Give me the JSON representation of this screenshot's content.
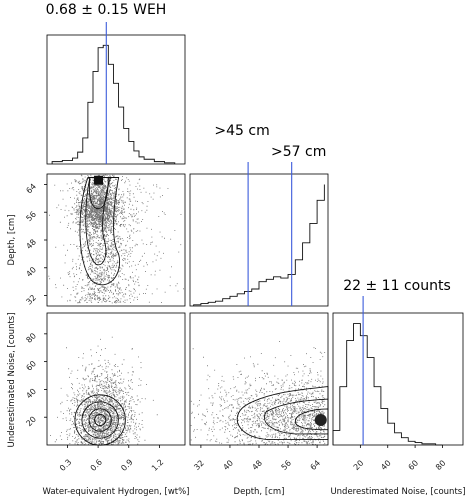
{
  "chart_data": {
    "type": "corner",
    "parameters": [
      {
        "id": "weh",
        "label": "Water-equivalent Hydrogen, [wt%]",
        "range": [
          0.1,
          1.45
        ],
        "ticks": [
          "0.3",
          "0.6",
          "0.9",
          "1.2"
        ],
        "tick_values": [
          0.3,
          0.6,
          0.9,
          1.2
        ]
      },
      {
        "id": "depth",
        "label": "Depth, [cm]",
        "range": [
          29,
          67
        ],
        "ticks": [
          "32",
          "40",
          "48",
          "56",
          "64"
        ],
        "tick_values": [
          32,
          40,
          48,
          56,
          64
        ]
      },
      {
        "id": "noise",
        "label": "Underestimated Noise, [counts]",
        "range": [
          0,
          95
        ],
        "ticks": [
          "20",
          "40",
          "60",
          "80"
        ],
        "tick_values": [
          20,
          40,
          60,
          80
        ]
      }
    ],
    "marginals": [
      {
        "param": "weh",
        "title": "0.68 ± 0.15 WEH",
        "markers": [
          0.68
        ],
        "bins": [
          0.15,
          0.25,
          0.35,
          0.4,
          0.45,
          0.5,
          0.55,
          0.6,
          0.65,
          0.7,
          0.75,
          0.8,
          0.85,
          0.9,
          0.95,
          1.0,
          1.05,
          1.15,
          1.25,
          1.35
        ],
        "counts": [
          2,
          3,
          5,
          10,
          22,
          52,
          78,
          98,
          100,
          84,
          68,
          48,
          30,
          19,
          11,
          6,
          4,
          2,
          1
        ]
      },
      {
        "param": "depth",
        "labels": [
          ">45 cm",
          ">57 cm"
        ],
        "markers": [
          45,
          57
        ],
        "bins": [
          30,
          32,
          34,
          36,
          38,
          40,
          42,
          44,
          46,
          48,
          50,
          52,
          54,
          56,
          58,
          60,
          62,
          64,
          66
        ],
        "counts": [
          1,
          2,
          3,
          4,
          6,
          8,
          10,
          12,
          14,
          20,
          22,
          24,
          23,
          26,
          38,
          52,
          68,
          87,
          100
        ]
      },
      {
        "param": "noise",
        "title": "22 ± 11 counts",
        "markers": [
          22
        ],
        "bins": [
          0,
          5,
          10,
          15,
          20,
          25,
          30,
          35,
          40,
          45,
          50,
          55,
          60,
          65,
          70,
          75,
          80
        ],
        "counts": [
          12,
          48,
          86,
          100,
          90,
          72,
          48,
          30,
          18,
          10,
          6,
          3,
          2,
          1,
          1,
          0
        ]
      }
    ],
    "joint": [
      {
        "x": "weh",
        "y": "depth",
        "peak": [
          0.6,
          63
        ]
      },
      {
        "x": "weh",
        "y": "noise",
        "peak": [
          0.62,
          18
        ]
      },
      {
        "x": "depth",
        "y": "noise",
        "peak": [
          64,
          18
        ]
      }
    ]
  }
}
